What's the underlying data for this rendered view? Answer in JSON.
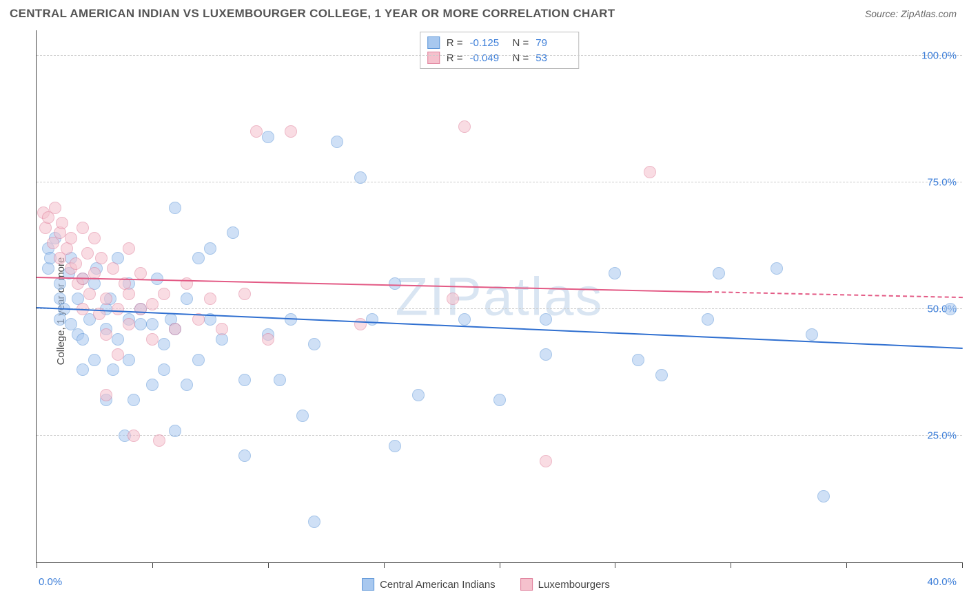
{
  "header": {
    "title": "CENTRAL AMERICAN INDIAN VS LUXEMBOURGER COLLEGE, 1 YEAR OR MORE CORRELATION CHART",
    "source_label": "Source:",
    "source_value": "ZipAtlas.com"
  },
  "chart": {
    "type": "scatter",
    "ylabel": "College, 1 year or more",
    "xlim": [
      0,
      40
    ],
    "ylim": [
      0,
      105
    ],
    "xtick_positions": [
      0,
      5,
      10,
      15,
      20,
      25,
      30,
      35,
      40
    ],
    "xaxis_start_label": "0.0%",
    "xaxis_end_label": "40.0%",
    "ygrid": [
      {
        "value": 25,
        "label": "25.0%"
      },
      {
        "value": 50,
        "label": "50.0%"
      },
      {
        "value": 75,
        "label": "75.0%"
      },
      {
        "value": 100,
        "label": "100.0%"
      }
    ],
    "grid_color": "#cccccc",
    "background_color": "#ffffff",
    "watermark": "ZIPatlas",
    "marker_radius": 9,
    "marker_opacity": 0.55,
    "series": [
      {
        "name": "Central American Indians",
        "color_fill": "#a8c8ef",
        "color_stroke": "#5e96d8",
        "trend": {
          "y_at_x0": 50.5,
          "y_at_x40": 42.5,
          "solid_until_x": 40,
          "line_color": "#2f6fd0",
          "line_width": 2
        },
        "legend_stats": {
          "R": "-0.125",
          "N": "79"
        },
        "points": [
          [
            0.5,
            62
          ],
          [
            0.5,
            58
          ],
          [
            0.6,
            60
          ],
          [
            0.8,
            64
          ],
          [
            1.0,
            55
          ],
          [
            1.0,
            52
          ],
          [
            1.0,
            48
          ],
          [
            1.2,
            50
          ],
          [
            1.4,
            57
          ],
          [
            1.5,
            60
          ],
          [
            1.5,
            47
          ],
          [
            1.8,
            45
          ],
          [
            1.8,
            52
          ],
          [
            2.0,
            44
          ],
          [
            2.0,
            56
          ],
          [
            2.0,
            38
          ],
          [
            2.3,
            48
          ],
          [
            2.5,
            55
          ],
          [
            2.5,
            40
          ],
          [
            2.6,
            58
          ],
          [
            3.0,
            32
          ],
          [
            3.0,
            50
          ],
          [
            3.0,
            46
          ],
          [
            3.2,
            52
          ],
          [
            3.3,
            38
          ],
          [
            3.5,
            44
          ],
          [
            3.5,
            60
          ],
          [
            3.8,
            25
          ],
          [
            4.0,
            48
          ],
          [
            4.0,
            40
          ],
          [
            4.0,
            55
          ],
          [
            4.2,
            32
          ],
          [
            4.5,
            47
          ],
          [
            4.5,
            50
          ],
          [
            5.0,
            47
          ],
          [
            5.0,
            35
          ],
          [
            5.2,
            56
          ],
          [
            5.5,
            43
          ],
          [
            5.5,
            38
          ],
          [
            5.8,
            48
          ],
          [
            6.0,
            70
          ],
          [
            6.0,
            46
          ],
          [
            6.0,
            26
          ],
          [
            6.5,
            52
          ],
          [
            6.5,
            35
          ],
          [
            7.0,
            60
          ],
          [
            7.0,
            40
          ],
          [
            7.5,
            62
          ],
          [
            7.5,
            48
          ],
          [
            8.0,
            44
          ],
          [
            8.5,
            65
          ],
          [
            9.0,
            36
          ],
          [
            9.0,
            21
          ],
          [
            10.0,
            45
          ],
          [
            10.0,
            84
          ],
          [
            10.5,
            36
          ],
          [
            11.0,
            48
          ],
          [
            11.5,
            29
          ],
          [
            12.0,
            43
          ],
          [
            12.0,
            8
          ],
          [
            13.0,
            83
          ],
          [
            14.0,
            76
          ],
          [
            14.5,
            48
          ],
          [
            15.5,
            55
          ],
          [
            15.5,
            23
          ],
          [
            16.5,
            33
          ],
          [
            18.5,
            48
          ],
          [
            20.0,
            32
          ],
          [
            22.0,
            48
          ],
          [
            22.0,
            41
          ],
          [
            25.0,
            57
          ],
          [
            26.0,
            40
          ],
          [
            27.0,
            37
          ],
          [
            29.0,
            48
          ],
          [
            29.5,
            57
          ],
          [
            32.0,
            58
          ],
          [
            33.5,
            45
          ],
          [
            34.0,
            13
          ],
          [
            39.5,
            50
          ]
        ]
      },
      {
        "name": "Luxembourgers",
        "color_fill": "#f5c1cd",
        "color_stroke": "#e07f9b",
        "trend": {
          "y_at_x0": 56.5,
          "y_at_x40": 52.5,
          "solid_until_x": 29,
          "line_color": "#e35a85",
          "line_width": 2
        },
        "legend_stats": {
          "R": "-0.049",
          "N": "53"
        },
        "points": [
          [
            0.3,
            69
          ],
          [
            0.4,
            66
          ],
          [
            0.5,
            68
          ],
          [
            0.7,
            63
          ],
          [
            0.8,
            70
          ],
          [
            1.0,
            65
          ],
          [
            1.0,
            60
          ],
          [
            1.1,
            67
          ],
          [
            1.3,
            62
          ],
          [
            1.5,
            58
          ],
          [
            1.5,
            64
          ],
          [
            1.7,
            59
          ],
          [
            1.8,
            55
          ],
          [
            2.0,
            66
          ],
          [
            2.0,
            56
          ],
          [
            2.0,
            50
          ],
          [
            2.2,
            61
          ],
          [
            2.3,
            53
          ],
          [
            2.5,
            57
          ],
          [
            2.5,
            64
          ],
          [
            2.7,
            49
          ],
          [
            2.8,
            60
          ],
          [
            3.0,
            52
          ],
          [
            3.0,
            45
          ],
          [
            3.0,
            33
          ],
          [
            3.3,
            58
          ],
          [
            3.5,
            50
          ],
          [
            3.5,
            41
          ],
          [
            3.8,
            55
          ],
          [
            4.0,
            47
          ],
          [
            4.0,
            53
          ],
          [
            4.0,
            62
          ],
          [
            4.2,
            25
          ],
          [
            4.5,
            50
          ],
          [
            4.5,
            57
          ],
          [
            5.0,
            44
          ],
          [
            5.0,
            51
          ],
          [
            5.3,
            24
          ],
          [
            5.5,
            53
          ],
          [
            6.0,
            46
          ],
          [
            6.5,
            55
          ],
          [
            7.0,
            48
          ],
          [
            7.5,
            52
          ],
          [
            8.0,
            46
          ],
          [
            9.0,
            53
          ],
          [
            9.5,
            85
          ],
          [
            10.0,
            44
          ],
          [
            11.0,
            85
          ],
          [
            14.0,
            47
          ],
          [
            18.0,
            52
          ],
          [
            18.5,
            86
          ],
          [
            22.0,
            20
          ],
          [
            26.5,
            77
          ]
        ]
      }
    ],
    "legend_bottom": [
      {
        "label": "Central American Indians",
        "fill": "#a8c8ef",
        "stroke": "#5e96d8"
      },
      {
        "label": "Luxembourgers",
        "fill": "#f5c1cd",
        "stroke": "#e07f9b"
      }
    ],
    "legend_top_labels": {
      "R": "R =",
      "N": "N ="
    }
  }
}
